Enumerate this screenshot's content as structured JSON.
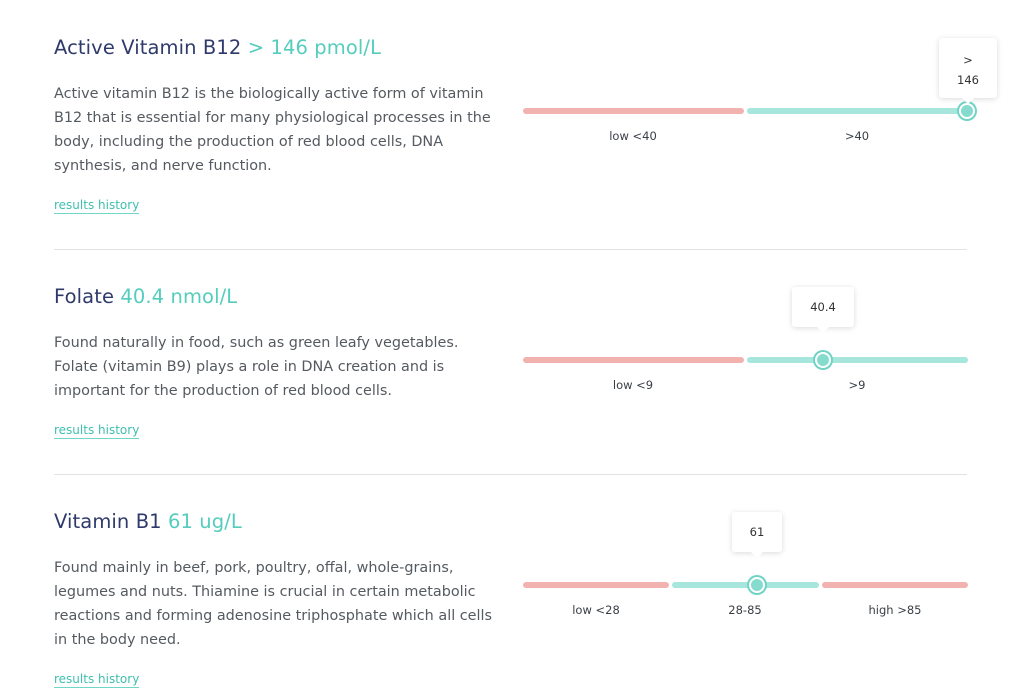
{
  "results": [
    {
      "name": "Active Vitamin B12",
      "value": "> 146 pmol/L",
      "description": "Active vitamin B12 is the biologically active form of vitamin B12 that is essential for many physiological processes in the body, including the production of red blood cells, DNA synthesis, and nerve function.",
      "history_link": "results history",
      "ranges": [
        {
          "label": "low <40",
          "status": "low"
        },
        {
          "label": ">40",
          "status": "normal"
        }
      ],
      "marker": {
        "line1": ">",
        "line2": "146"
      }
    },
    {
      "name": "Folate",
      "value": "40.4 nmol/L",
      "description": "Found naturally in food, such as green leafy vegetables. Folate (vitamin B9) plays a role in DNA creation and is important for the production of red blood cells.",
      "history_link": "results history",
      "ranges": [
        {
          "label": "low <9",
          "status": "low"
        },
        {
          "label": ">9",
          "status": "normal"
        }
      ],
      "marker": {
        "line1": "40.4"
      }
    },
    {
      "name": "Vitamin B1",
      "value": "61 ug/L",
      "description": "Found mainly in beef, pork, poultry, offal, whole-grains, legumes and nuts. Thiamine is crucial in certain metabolic reactions and forming adenosine triphosphate which all cells in the body need.",
      "history_link": "results history",
      "ranges": [
        {
          "label": "low <28",
          "status": "low"
        },
        {
          "label": "28-85",
          "status": "normal"
        },
        {
          "label": "high >85",
          "status": "high"
        }
      ],
      "marker": {
        "line1": "61"
      }
    }
  ],
  "colors": {
    "accent": "#54cdbd",
    "title": "#2f3a6b",
    "low": "#f2b3b0",
    "normal": "#a6e6dd"
  }
}
